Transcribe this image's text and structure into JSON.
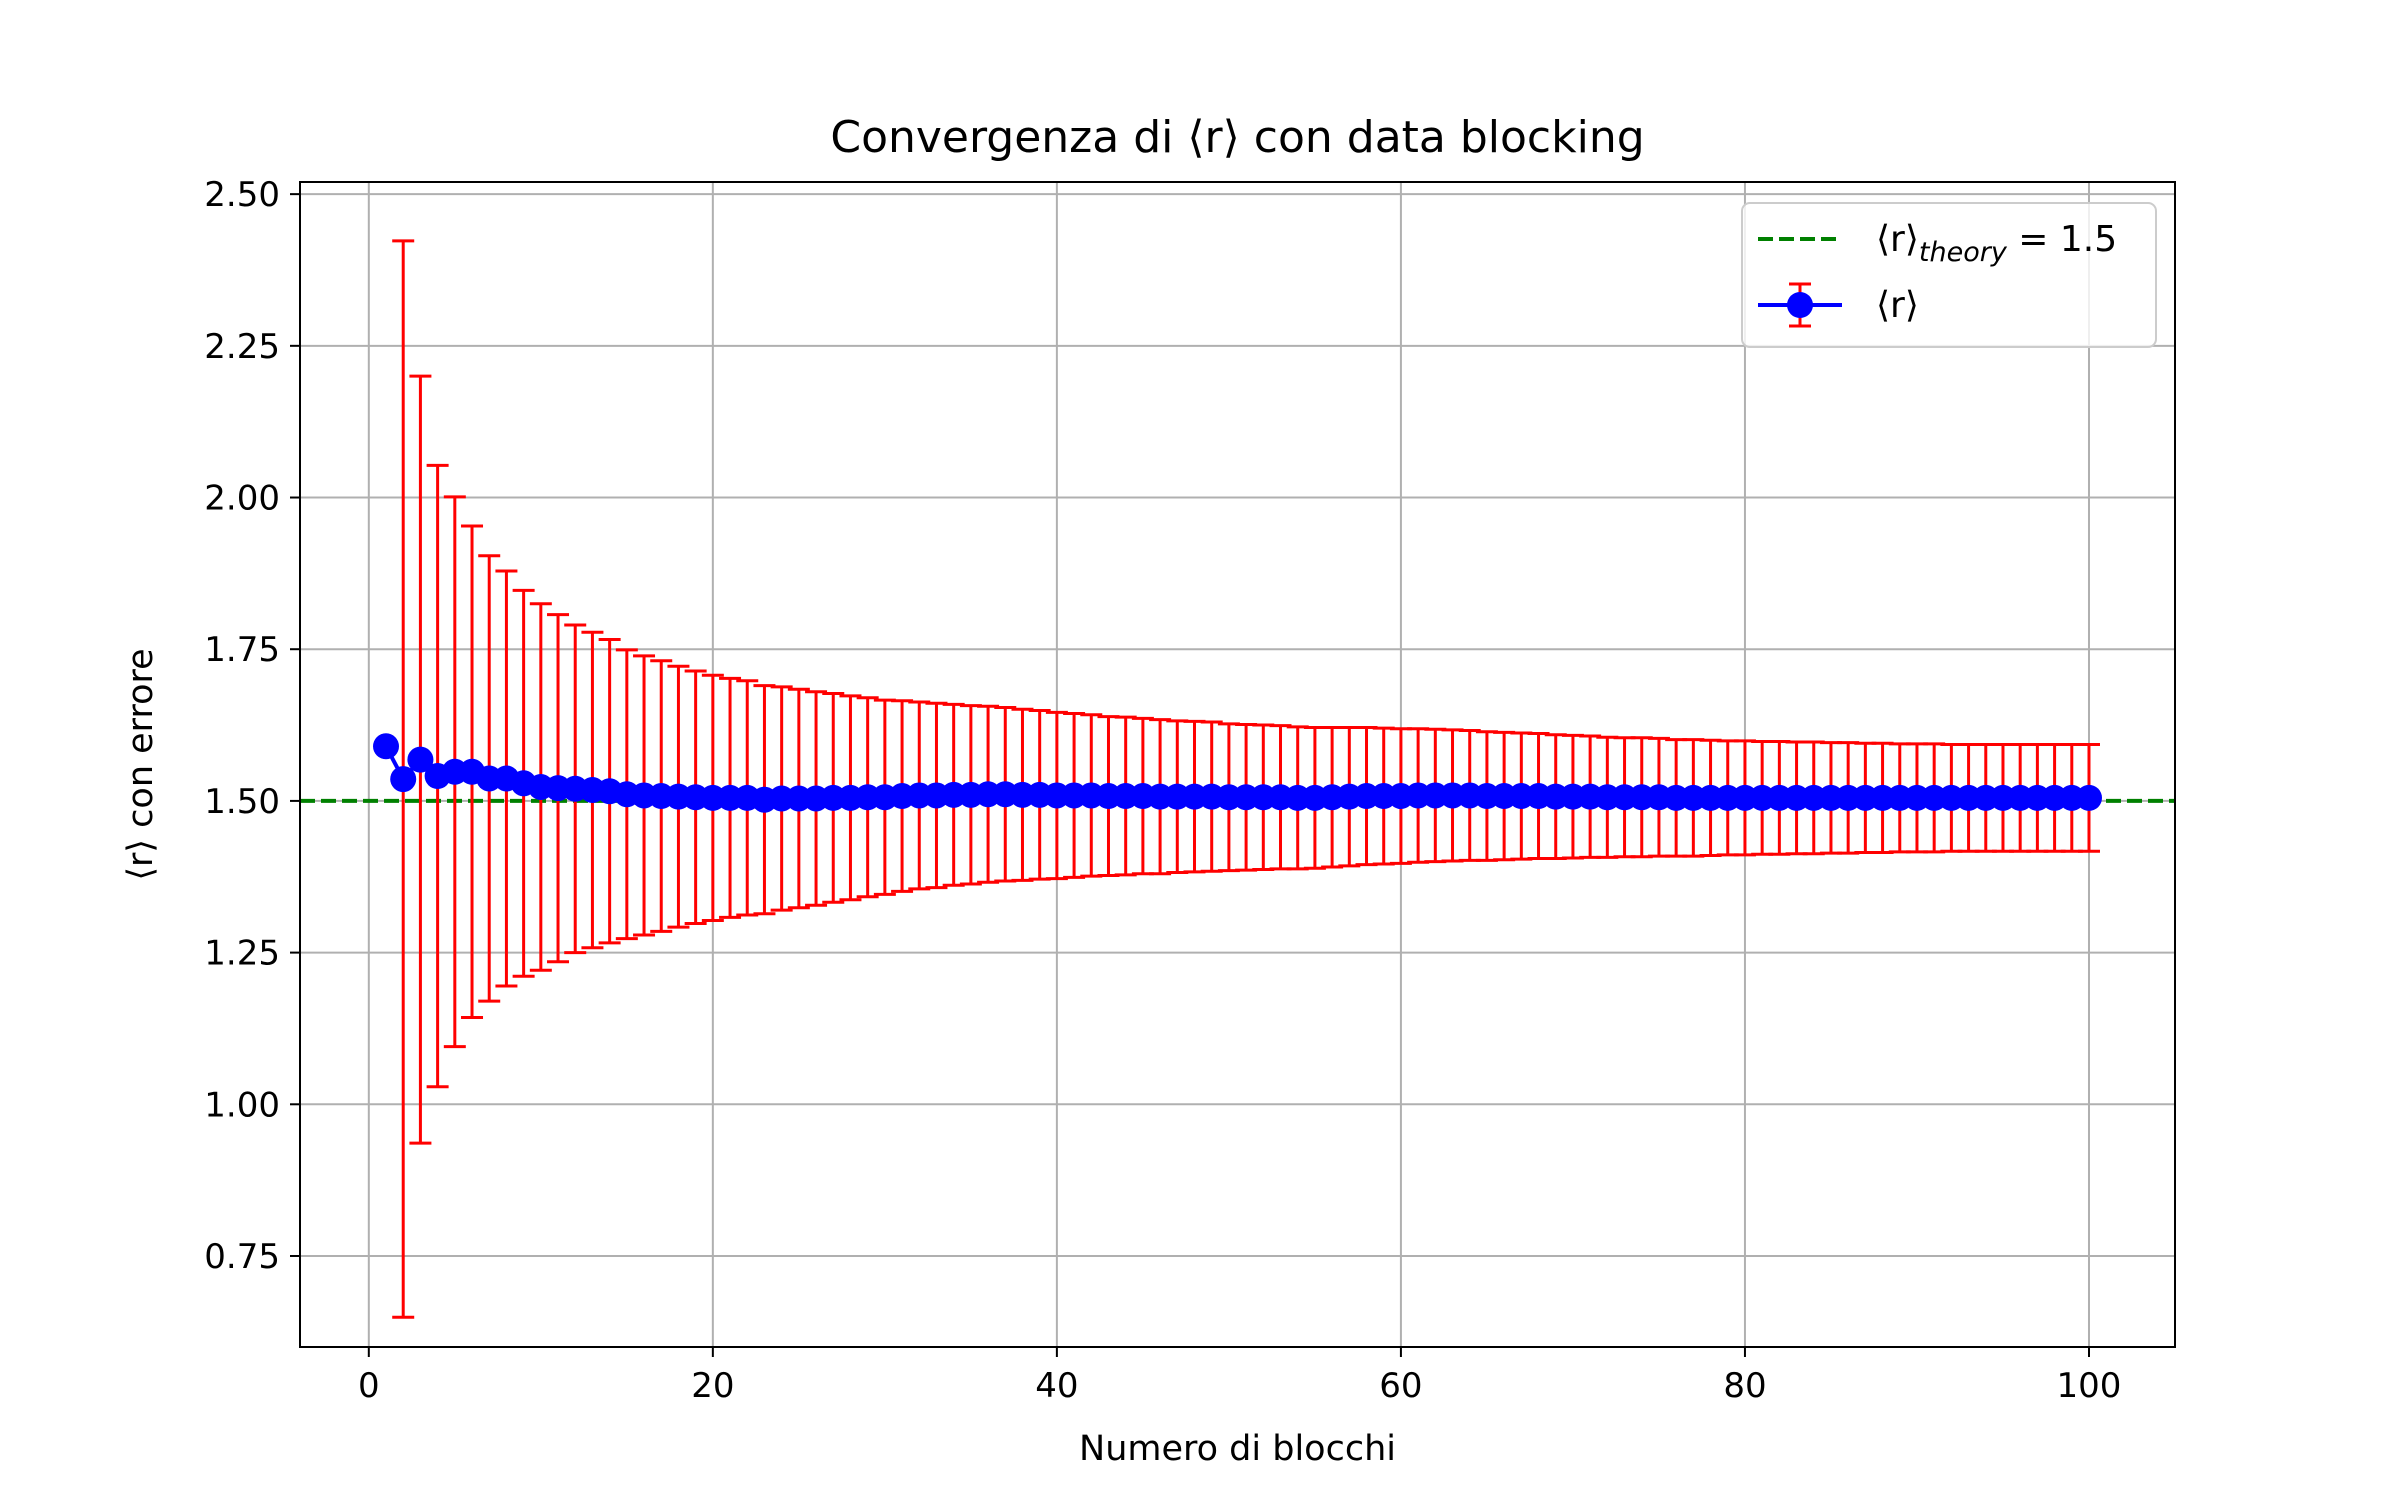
{
  "chart_data": {
    "type": "errorbar-line",
    "title": "Convergenza di ⟨r⟩ con data blocking",
    "xlabel": "Numero di blocchi",
    "ylabel": "⟨r⟩ con errore",
    "xlim": [
      -4,
      105
    ],
    "ylim": [
      0.6,
      2.52
    ],
    "xticks": [
      0,
      20,
      40,
      60,
      80,
      100
    ],
    "xtick_labels": [
      "0",
      "20",
      "40",
      "60",
      "80",
      "100"
    ],
    "yticks": [
      0.75,
      1.0,
      1.25,
      1.5,
      1.75,
      2.0,
      2.25,
      2.5
    ],
    "ytick_labels": [
      "0.75",
      "1.00",
      "1.25",
      "1.50",
      "1.75",
      "2.00",
      "2.25",
      "2.50"
    ],
    "grid": true,
    "legend_position": "top-right",
    "reference_line": {
      "y": 1.5,
      "label_main": "⟨r⟩",
      "label_sub": "theory",
      "label_rest": " = 1.5",
      "color": "#008000",
      "style": "dashed"
    },
    "series": [
      {
        "name": "⟨r⟩",
        "line_color": "#0000ff",
        "marker_color": "#0000ff",
        "errorbar_color": "#ff0000",
        "x": [
          1,
          2,
          3,
          4,
          5,
          6,
          7,
          8,
          9,
          10,
          11,
          12,
          13,
          14,
          15,
          16,
          17,
          18,
          19,
          20,
          21,
          22,
          23,
          24,
          25,
          26,
          27,
          28,
          29,
          30,
          31,
          32,
          33,
          34,
          35,
          36,
          37,
          38,
          39,
          40,
          41,
          42,
          43,
          44,
          45,
          46,
          47,
          48,
          49,
          50,
          51,
          52,
          53,
          54,
          55,
          56,
          57,
          58,
          59,
          60,
          61,
          62,
          63,
          64,
          65,
          66,
          67,
          68,
          69,
          70,
          71,
          72,
          73,
          74,
          75,
          76,
          77,
          78,
          79,
          80,
          81,
          82,
          83,
          84,
          85,
          86,
          87,
          88,
          89,
          90,
          91,
          92,
          93,
          94,
          95,
          96,
          97,
          98,
          99,
          100
        ],
        "y": [
          1.59,
          1.536,
          1.568,
          1.541,
          1.548,
          1.548,
          1.537,
          1.537,
          1.529,
          1.523,
          1.521,
          1.52,
          1.518,
          1.516,
          1.511,
          1.509,
          1.508,
          1.507,
          1.506,
          1.505,
          1.505,
          1.505,
          1.502,
          1.504,
          1.504,
          1.504,
          1.505,
          1.505,
          1.506,
          1.506,
          1.508,
          1.509,
          1.509,
          1.51,
          1.51,
          1.511,
          1.511,
          1.51,
          1.51,
          1.509,
          1.509,
          1.509,
          1.508,
          1.508,
          1.508,
          1.507,
          1.507,
          1.507,
          1.507,
          1.506,
          1.506,
          1.506,
          1.506,
          1.505,
          1.505,
          1.506,
          1.507,
          1.508,
          1.508,
          1.508,
          1.509,
          1.509,
          1.509,
          1.509,
          1.508,
          1.508,
          1.508,
          1.508,
          1.507,
          1.507,
          1.507,
          1.506,
          1.506,
          1.506,
          1.506,
          1.505,
          1.505,
          1.505,
          1.505,
          1.505,
          1.505,
          1.505,
          1.505,
          1.505,
          1.505,
          1.505,
          1.505,
          1.505,
          1.505,
          1.505,
          1.505,
          1.505,
          1.505,
          1.505,
          1.505,
          1.505,
          1.505,
          1.505,
          1.505,
          1.505
        ],
        "err": [
          0,
          0.887,
          0.632,
          0.512,
          0.453,
          0.405,
          0.367,
          0.342,
          0.318,
          0.302,
          0.286,
          0.27,
          0.26,
          0.25,
          0.238,
          0.23,
          0.223,
          0.215,
          0.208,
          0.202,
          0.197,
          0.193,
          0.188,
          0.184,
          0.18,
          0.176,
          0.172,
          0.168,
          0.164,
          0.16,
          0.157,
          0.154,
          0.152,
          0.149,
          0.147,
          0.145,
          0.143,
          0.141,
          0.139,
          0.137,
          0.135,
          0.133,
          0.131,
          0.13,
          0.128,
          0.127,
          0.125,
          0.124,
          0.123,
          0.121,
          0.12,
          0.119,
          0.118,
          0.117,
          0.116,
          0.115,
          0.114,
          0.113,
          0.112,
          0.111,
          0.11,
          0.109,
          0.108,
          0.107,
          0.106,
          0.105,
          0.104,
          0.103,
          0.102,
          0.101,
          0.1,
          0.099,
          0.098,
          0.098,
          0.097,
          0.096,
          0.096,
          0.095,
          0.094,
          0.094,
          0.093,
          0.093,
          0.092,
          0.092,
          0.091,
          0.091,
          0.09,
          0.09,
          0.089,
          0.089,
          0.089,
          0.088,
          0.088,
          0.088,
          0.088,
          0.088,
          0.088,
          0.088,
          0.088,
          0.088
        ]
      }
    ]
  }
}
